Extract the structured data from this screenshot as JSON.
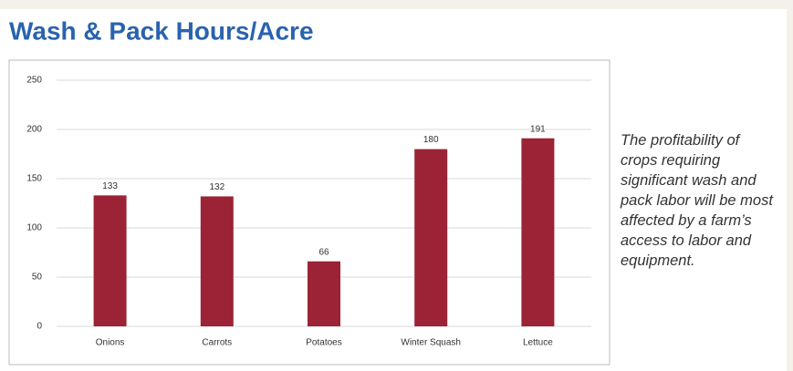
{
  "chart_data": {
    "type": "bar",
    "title": "Wash & Pack Hours/Acre",
    "categories": [
      "Onions",
      "Carrots",
      "Potatoes",
      "Winter Squash",
      "Lettuce"
    ],
    "values": [
      133,
      132,
      66,
      180,
      191
    ],
    "color": "#9b2335",
    "ylim": [
      0,
      250
    ],
    "yticks": [
      0,
      50,
      100,
      150,
      200,
      250
    ],
    "grid": true,
    "annotation": "The profitability of crops requiring significant wash and pack labor will be most affected by a farm’s access to labor and equipment."
  }
}
